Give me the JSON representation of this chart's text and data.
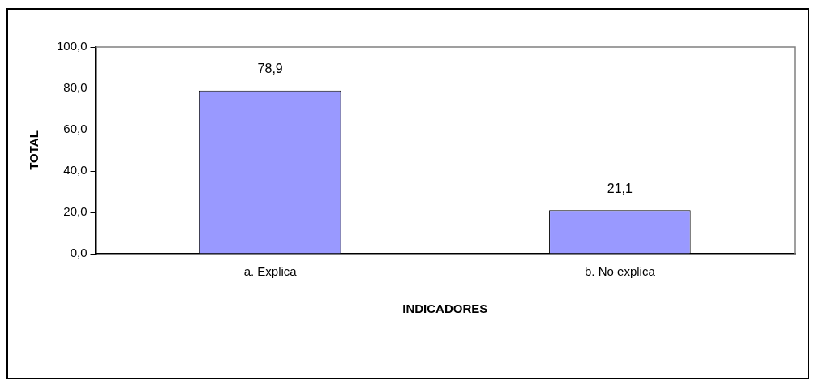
{
  "chart_data": {
    "type": "bar",
    "xlabel": "INDICADORES",
    "ylabel": "TOTAL",
    "categories": [
      "a. Explica",
      "b. No explica"
    ],
    "values": [
      78.9,
      21.1
    ],
    "color": "#9999ff",
    "value_labels": [
      "78,9",
      "21,1"
    ],
    "ylim": [
      0,
      100
    ],
    "yticks": [
      {
        "value": 0,
        "label": "0,0"
      },
      {
        "value": 20,
        "label": "20,0"
      },
      {
        "value": 40,
        "label": "40,0"
      },
      {
        "value": 60,
        "label": "60,0"
      },
      {
        "value": 80,
        "label": "80,0"
      },
      {
        "value": 100,
        "label": "100,0"
      }
    ],
    "grid": false,
    "legend": false
  }
}
